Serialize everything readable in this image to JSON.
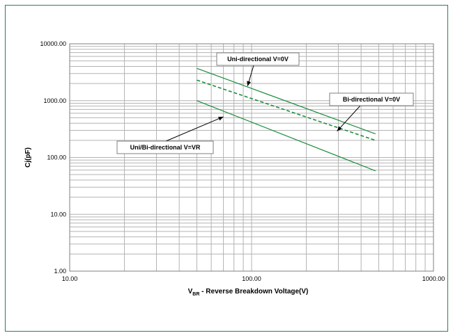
{
  "chart_data": {
    "type": "line",
    "title": "",
    "xlabel_main": "V",
    "xlabel_sub": "BR",
    "xlabel_rest": " - Reverse Breakdown Voltage(V)",
    "ylabel": "Cj(pF)",
    "xscale": "log",
    "yscale": "log",
    "xlim": [
      10,
      1000
    ],
    "ylim": [
      1,
      10000
    ],
    "grid": true,
    "x_ticks": [
      "10.00",
      "100.00",
      "1000.00"
    ],
    "y_ticks": [
      "1.00",
      "10.00",
      "100.00",
      "1000.00",
      "10000.00"
    ],
    "series": [
      {
        "name": "Uni-directional V=0V",
        "style": "solid",
        "x": [
          50,
          480
        ],
        "y": [
          3700,
          260
        ]
      },
      {
        "name": "Bi-directional V=0V",
        "style": "dashed",
        "x": [
          50,
          480
        ],
        "y": [
          2300,
          200
        ]
      },
      {
        "name": "Uni/Bi-directional V=VR",
        "style": "solid",
        "x": [
          50,
          480
        ],
        "y": [
          1000,
          58
        ]
      }
    ],
    "annotations": [
      {
        "text": "Uni-directional V=0V",
        "point": [
          95,
          1800
        ]
      },
      {
        "text": "Bi-directional V=0V",
        "point": [
          295,
          290
        ]
      },
      {
        "text": "Uni/Bi-directional V=VR",
        "point": [
          70,
          520
        ]
      }
    ]
  },
  "colors": {
    "series": "#1a8c3c",
    "grid": "#b3b3b3",
    "frame": "#2e7d4f"
  }
}
